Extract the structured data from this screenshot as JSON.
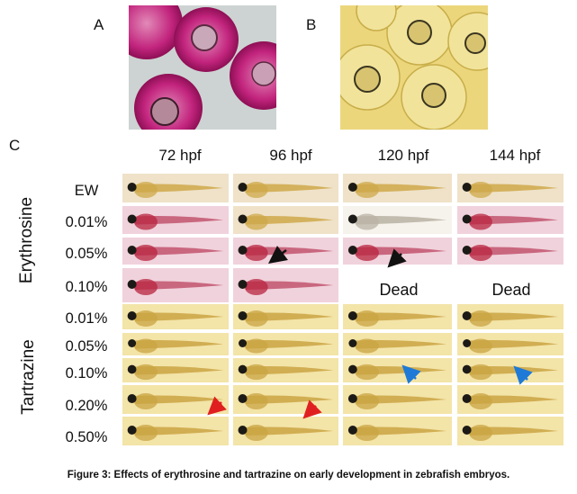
{
  "panels": {
    "a": "A",
    "b": "B",
    "c": "C"
  },
  "columns": [
    "72 hpf",
    "96 hpf",
    "120 hpf",
    "144 hpf"
  ],
  "groups": {
    "erythrosine": "Erythrosine",
    "tartrazine": "Tartrazine"
  },
  "rows": {
    "ew": "EW",
    "ery": [
      "0.01%",
      "0.05%",
      "0.10%"
    ],
    "tar": [
      "0.01%",
      "0.05%",
      "0.10%",
      "0.20%",
      "0.50%"
    ]
  },
  "dead_label": "Dead",
  "caption": "Figure 3: Effects of erythrosine and tartrazine on early development in zebrafish embryos.",
  "colors": {
    "erythrosine_bg": "#b0196e",
    "tartrazine_bg": "#e8d36c",
    "arrow_black": "#111111",
    "arrow_red": "#e02020",
    "arrow_blue": "#1e7ad6"
  }
}
